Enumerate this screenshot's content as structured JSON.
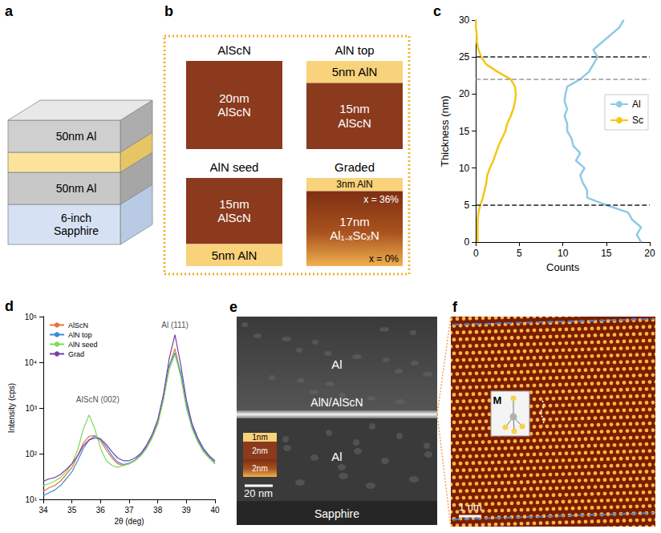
{
  "panels": {
    "a": {
      "letter": "a",
      "labels": [
        "50nm Al",
        "50nm Al",
        "6-inch Sapphire"
      ]
    },
    "b": {
      "letter": "b",
      "stacks": [
        {
          "title": "AlScN",
          "layers": [
            {
              "label": "20nm AlScN",
              "nm": 20,
              "material": "AlScN"
            }
          ]
        },
        {
          "title": "AlN top",
          "layers": [
            {
              "label": "5nm AlN",
              "nm": 5,
              "material": "AlN"
            },
            {
              "label": "15nm AlScN",
              "nm": 15,
              "material": "AlScN"
            }
          ]
        },
        {
          "title": "AlN seed",
          "layers": [
            {
              "label": "15nm AlScN",
              "nm": 15,
              "material": "AlScN"
            },
            {
              "label": "5nm AlN",
              "nm": 5,
              "material": "AlN"
            }
          ]
        },
        {
          "title": "Graded",
          "layers": [
            {
              "label": "3nm AlN",
              "nm": 3,
              "material": "AlN"
            },
            {
              "label": "17nm Al₁₋ₓScₓN",
              "nm": 17,
              "material": "Graded",
              "top_label": "x = 36%",
              "bottom_label": "x = 0%"
            }
          ]
        }
      ]
    },
    "e": {
      "letter": "e",
      "labels": {
        "top": "Al",
        "interface": "AlN/AlScN",
        "bottom": "Al",
        "substrate": "Sapphire"
      },
      "scale_bar": "20 nm",
      "inset": [
        {
          "label": "1nm",
          "nm": 1,
          "material": "AlN"
        },
        {
          "label": "2nm",
          "nm": 2,
          "material": "AlScN"
        },
        {
          "label": "2nm",
          "nm": 2,
          "material": "Graded"
        }
      ]
    },
    "f": {
      "letter": "f",
      "inset_label": "M",
      "scale_bar": "1 nm"
    }
  },
  "chart_data": [
    {
      "panel": "c",
      "type": "line",
      "x_label": "Counts",
      "y_label": "Thickness (nm)",
      "xlim": [
        0,
        20
      ],
      "xticks": [
        0,
        5,
        10,
        15,
        20
      ],
      "ylim": [
        0,
        30
      ],
      "yticks": [
        0,
        5,
        10,
        15,
        20,
        25,
        30
      ],
      "legend": "right",
      "series": [
        {
          "name": "Al",
          "color": "#8ecae6",
          "x": [
            19,
            18.5,
            19,
            18,
            17.5,
            15,
            12.8,
            12.8,
            12.3,
            12,
            12.5,
            11.5,
            12,
            11.2,
            11,
            10.5,
            10.5,
            10.2,
            10.5,
            10.2,
            10.3,
            10.5,
            12,
            13,
            13.5,
            14,
            13.5,
            14.5,
            15.5,
            16.5,
            17
          ],
          "y": [
            0,
            1,
            2,
            3,
            4,
            5,
            6,
            7,
            8,
            9,
            10,
            11,
            12,
            13,
            14,
            15,
            16,
            17,
            18,
            19,
            20,
            21,
            22,
            23,
            24,
            25,
            26,
            27,
            28,
            29,
            30
          ]
        },
        {
          "name": "Sc",
          "color": "#f5c518",
          "x": [
            0.2,
            0.2,
            0.2,
            0.2,
            0.3,
            0.5,
            0.8,
            1,
            1.2,
            1.3,
            1.6,
            2,
            2.3,
            2.6,
            3,
            3.4,
            3.6,
            4,
            4.3,
            4.5,
            4.6,
            4.5,
            4,
            2.5,
            1.2,
            0.6,
            0.3,
            0.1,
            0.1,
            0,
            0
          ],
          "y": [
            0,
            1,
            2,
            3,
            4,
            5,
            6,
            7,
            8,
            9,
            10,
            11,
            12,
            13,
            14,
            15,
            16,
            17,
            18,
            19,
            20,
            21,
            22,
            23,
            24,
            25,
            26,
            27,
            28,
            29,
            30
          ]
        }
      ],
      "reference_lines": [
        {
          "y": 25,
          "color": "#222222"
        },
        {
          "y": 22,
          "color": "#999999"
        },
        {
          "y": 5,
          "color": "#222222"
        }
      ]
    },
    {
      "panel": "d",
      "type": "line",
      "log": "y",
      "x_label": "2θ (deg)",
      "y_label": "Intensity (cps)",
      "xlim": [
        34,
        40
      ],
      "xticks": [
        34,
        35,
        36,
        37,
        38,
        39,
        40
      ],
      "ylim": [
        10,
        100000
      ],
      "yticks": [
        {
          "value": 10,
          "label": "10¹"
        },
        {
          "value": 100,
          "label": "10²"
        },
        {
          "value": 1000,
          "label": "10³"
        },
        {
          "value": 10000,
          "label": "10⁴"
        },
        {
          "value": 100000,
          "label": "10⁵"
        }
      ],
      "legend": "top-left",
      "x": [
        34,
        34.2,
        34.4,
        34.6,
        34.8,
        35,
        35.2,
        35.4,
        35.6,
        35.8,
        36,
        36.2,
        36.4,
        36.6,
        36.8,
        37,
        37.2,
        37.4,
        37.6,
        37.8,
        38,
        38.2,
        38.4,
        38.6,
        38.8,
        39,
        39.2,
        39.4,
        39.6,
        39.8,
        40
      ],
      "series": [
        {
          "name": "AlScN",
          "color": "#e8743b",
          "values": [
            15,
            18,
            20,
            25,
            35,
            50,
            90,
            170,
            240,
            250,
            190,
            120,
            80,
            60,
            55,
            60,
            70,
            90,
            130,
            220,
            450,
            1600,
            8000,
            20000,
            5500,
            1100,
            380,
            190,
            110,
            80,
            60
          ]
        },
        {
          "name": "AlN top",
          "color": "#3b8bd0",
          "values": [
            12,
            14,
            16,
            20,
            28,
            40,
            70,
            130,
            200,
            240,
            210,
            140,
            90,
            65,
            58,
            62,
            72,
            95,
            140,
            240,
            480,
            1700,
            8500,
            16000,
            6000,
            1200,
            400,
            200,
            120,
            85,
            65
          ]
        },
        {
          "name": "AlN seed",
          "color": "#7ddc5a",
          "values": [
            20,
            22,
            25,
            30,
            40,
            60,
            120,
            350,
            700,
            350,
            130,
            70,
            55,
            50,
            55,
            60,
            70,
            90,
            130,
            220,
            450,
            1500,
            7000,
            15000,
            5000,
            1000,
            350,
            180,
            110,
            80,
            60
          ]
        },
        {
          "name": "Grad",
          "color": "#7b3fa6",
          "values": [
            25,
            28,
            30,
            35,
            45,
            60,
            90,
            150,
            200,
            220,
            210,
            160,
            110,
            80,
            70,
            70,
            80,
            100,
            150,
            260,
            550,
            2000,
            12000,
            40000,
            9000,
            1500,
            450,
            220,
            130,
            90,
            70
          ]
        }
      ],
      "annotations": [
        {
          "text": "Al (111)",
          "x": 38.6,
          "y": 65000
        },
        {
          "text": "AlScN (002)",
          "x": 35.9,
          "y": 1500
        }
      ]
    }
  ]
}
